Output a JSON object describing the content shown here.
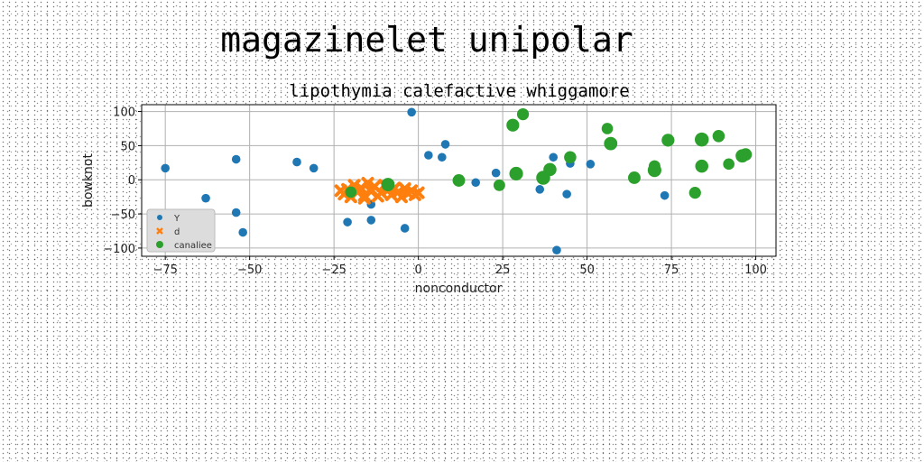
{
  "figure": {
    "title": "magazinelet unipolar"
  },
  "chart_data": {
    "type": "scatter",
    "title": "lipothymia calefactive whiggamore",
    "xlabel": "nonconductor",
    "ylabel": "bowknot",
    "xlim": [
      -82,
      106
    ],
    "ylim": [
      -112,
      110
    ],
    "xticks": [
      -75,
      -50,
      -25,
      0,
      25,
      50,
      75,
      100
    ],
    "yticks": [
      -100,
      -50,
      0,
      50,
      100
    ],
    "xtick_labels": [
      "−75",
      "−50",
      "−25",
      "0",
      "25",
      "50",
      "75",
      "100"
    ],
    "ytick_labels": [
      "−100",
      "−50",
      "0",
      "50",
      "100"
    ],
    "grid": true,
    "legend_position": "lower-left",
    "series": [
      {
        "name": "Y",
        "color": "#1f77b4",
        "marker": "circle",
        "points": [
          [
            -75,
            17
          ],
          [
            -63,
            -27
          ],
          [
            -54,
            30
          ],
          [
            -54,
            -48
          ],
          [
            -52,
            -77
          ],
          [
            -36,
            26
          ],
          [
            -31,
            17
          ],
          [
            -21,
            -62
          ],
          [
            -14,
            -36
          ],
          [
            -14,
            -59
          ],
          [
            -4,
            -71
          ],
          [
            -2,
            99
          ],
          [
            3,
            36
          ],
          [
            7,
            33
          ],
          [
            8,
            52
          ],
          [
            17,
            -4
          ],
          [
            23,
            10
          ],
          [
            36,
            -14
          ],
          [
            40,
            33
          ],
          [
            41,
            -103
          ],
          [
            44,
            -21
          ],
          [
            45,
            24
          ],
          [
            51,
            23
          ],
          [
            73,
            -23
          ]
        ]
      },
      {
        "name": "d",
        "color": "#ff7f0e",
        "marker": "x",
        "points": [
          [
            -22,
            -21
          ],
          [
            -21,
            -14
          ],
          [
            -20,
            -25
          ],
          [
            -19,
            -8
          ],
          [
            -18,
            -18
          ],
          [
            -17,
            -12
          ],
          [
            -16,
            -23
          ],
          [
            -15,
            -5
          ],
          [
            -14,
            -17
          ],
          [
            -13,
            -10
          ],
          [
            -12,
            -24
          ],
          [
            -11,
            -19
          ],
          [
            -10,
            -8
          ],
          [
            -9,
            -15
          ],
          [
            -8,
            -22
          ],
          [
            -7,
            -12
          ],
          [
            -6,
            -18
          ],
          [
            -5,
            -25
          ],
          [
            -4,
            -13
          ],
          [
            -3,
            -20
          ],
          [
            -2,
            -16
          ],
          [
            -1,
            -22
          ],
          [
            0,
            -19
          ],
          [
            -23,
            -16
          ],
          [
            -16,
            -27
          ]
        ]
      },
      {
        "name": "canaliee",
        "color": "#2ca02c",
        "marker": "circle",
        "points": [
          [
            -20,
            -18
          ],
          [
            -9,
            -7
          ],
          [
            12,
            -1
          ],
          [
            24,
            -8
          ],
          [
            29,
            9
          ],
          [
            28,
            80
          ],
          [
            31,
            96
          ],
          [
            37,
            3
          ],
          [
            39,
            15
          ],
          [
            45,
            33
          ],
          [
            56,
            75
          ],
          [
            57,
            53
          ],
          [
            64,
            3
          ],
          [
            70,
            20
          ],
          [
            70,
            14
          ],
          [
            74,
            58
          ],
          [
            82,
            -19
          ],
          [
            84,
            59
          ],
          [
            84,
            20
          ],
          [
            89,
            64
          ],
          [
            92,
            23
          ],
          [
            96,
            35
          ],
          [
            97,
            37
          ]
        ]
      }
    ]
  }
}
